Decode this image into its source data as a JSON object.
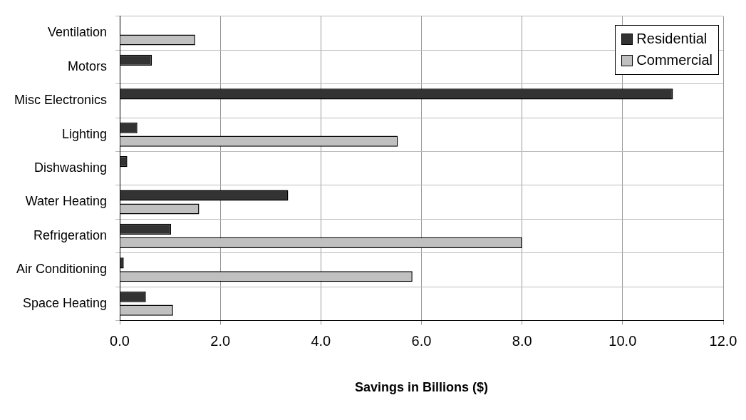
{
  "chart_data": {
    "type": "bar",
    "orientation": "horizontal",
    "xlabel": "Savings in Billions ($)",
    "categories": [
      "Ventilation",
      "Motors",
      "Misc Electronics",
      "Lighting",
      "Dishwashing",
      "Water Heating",
      "Refrigeration",
      "Air Conditioning",
      "Space Heating"
    ],
    "series": [
      {
        "name": "Residential",
        "color": "#333333",
        "values": [
          null,
          0.64,
          11.0,
          0.35,
          0.15,
          3.35,
          1.02,
          0.08,
          0.52
        ]
      },
      {
        "name": "Commercial",
        "color": "#c0c0c0",
        "values": [
          1.5,
          null,
          null,
          5.53,
          null,
          1.58,
          8.0,
          5.82,
          1.06
        ]
      }
    ],
    "xlim": [
      0,
      12
    ],
    "xticks": [
      {
        "value": 0,
        "label": "0.0"
      },
      {
        "value": 2,
        "label": "2.0"
      },
      {
        "value": 4,
        "label": "4.0"
      },
      {
        "value": 6,
        "label": "6.0"
      },
      {
        "value": 8,
        "label": "8.0"
      },
      {
        "value": 10,
        "label": "10.0"
      },
      {
        "value": 12,
        "label": "12.0"
      }
    ],
    "grid": true,
    "legend": "top right"
  }
}
